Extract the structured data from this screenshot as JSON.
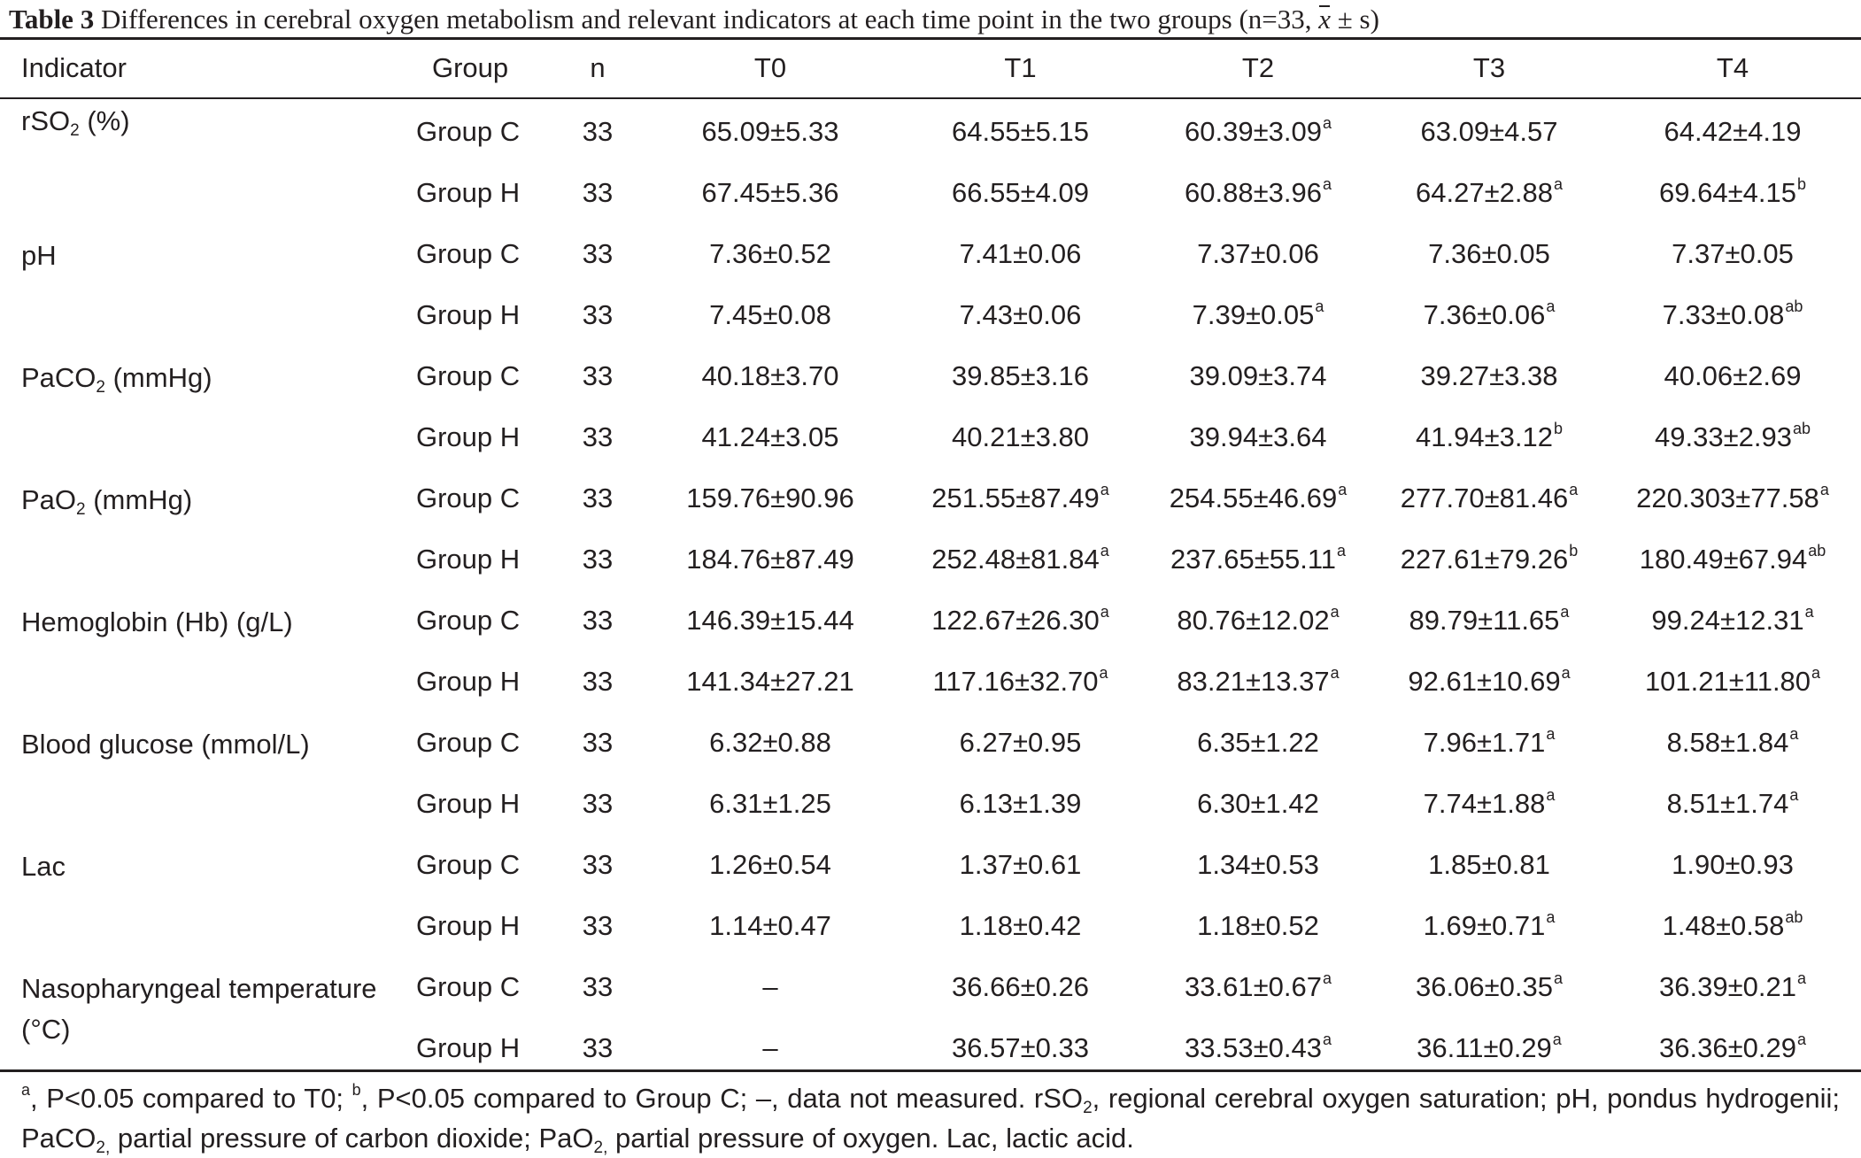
{
  "caption": {
    "label": "Table 3",
    "text_before": "Differences in cerebral oxygen metabolism and relevant indicators at each time point in the two groups (n=33, ",
    "mean_symbol": "x",
    "text_after": " ± s)"
  },
  "columns": [
    "Indicator",
    "Group",
    "n",
    "T0",
    "T1",
    "T2",
    "T3",
    "T4"
  ],
  "rows": [
    {
      "indicator_main": "rSO",
      "indicator_sub": "2",
      "indicator_rest": " (%)",
      "group": "Group C",
      "n": "33",
      "cells": [
        {
          "v": "65.09±5.33",
          "s": ""
        },
        {
          "v": "64.55±5.15",
          "s": ""
        },
        {
          "v": "60.39±3.09",
          "s": "a"
        },
        {
          "v": "63.09±4.57",
          "s": ""
        },
        {
          "v": "64.42±4.19",
          "s": ""
        }
      ]
    },
    {
      "indicator_main": "",
      "indicator_sub": "",
      "indicator_rest": "",
      "group": "Group H",
      "n": "33",
      "cells": [
        {
          "v": "67.45±5.36",
          "s": ""
        },
        {
          "v": "66.55±4.09",
          "s": ""
        },
        {
          "v": "60.88±3.96",
          "s": "a"
        },
        {
          "v": "64.27±2.88",
          "s": "a"
        },
        {
          "v": "69.64±4.15",
          "s": "b"
        }
      ]
    },
    {
      "indicator_main": "pH",
      "indicator_sub": "",
      "indicator_rest": "",
      "group": "Group C",
      "n": "33",
      "cells": [
        {
          "v": "7.36±0.52",
          "s": ""
        },
        {
          "v": "7.41±0.06",
          "s": ""
        },
        {
          "v": "7.37±0.06",
          "s": ""
        },
        {
          "v": "7.36±0.05",
          "s": ""
        },
        {
          "v": "7.37±0.05",
          "s": ""
        }
      ]
    },
    {
      "indicator_main": "",
      "indicator_sub": "",
      "indicator_rest": "",
      "group": "Group H",
      "n": "33",
      "cells": [
        {
          "v": "7.45±0.08",
          "s": ""
        },
        {
          "v": "7.43±0.06",
          "s": ""
        },
        {
          "v": "7.39±0.05",
          "s": "a"
        },
        {
          "v": "7.36±0.06",
          "s": "a"
        },
        {
          "v": "7.33±0.08",
          "s": "ab"
        }
      ]
    },
    {
      "indicator_main": "PaCO",
      "indicator_sub": "2",
      "indicator_rest": " (mmHg)",
      "group": "Group C",
      "n": "33",
      "cells": [
        {
          "v": "40.18±3.70",
          "s": ""
        },
        {
          "v": "39.85±3.16",
          "s": ""
        },
        {
          "v": "39.09±3.74",
          "s": ""
        },
        {
          "v": "39.27±3.38",
          "s": ""
        },
        {
          "v": "40.06±2.69",
          "s": ""
        }
      ]
    },
    {
      "indicator_main": "",
      "indicator_sub": "",
      "indicator_rest": "",
      "group": "Group H",
      "n": "33",
      "cells": [
        {
          "v": "41.24±3.05",
          "s": ""
        },
        {
          "v": "40.21±3.80",
          "s": ""
        },
        {
          "v": "39.94±3.64",
          "s": ""
        },
        {
          "v": "41.94±3.12",
          "s": "b"
        },
        {
          "v": "49.33±2.93",
          "s": "ab"
        }
      ]
    },
    {
      "indicator_main": "PaO",
      "indicator_sub": "2",
      "indicator_rest": " (mmHg)",
      "group": "Group C",
      "n": "33",
      "cells": [
        {
          "v": "159.76±90.96",
          "s": ""
        },
        {
          "v": "251.55±87.49",
          "s": "a"
        },
        {
          "v": "254.55±46.69",
          "s": "a"
        },
        {
          "v": "277.70±81.46",
          "s": "a"
        },
        {
          "v": "220.303±77.58",
          "s": "a"
        }
      ]
    },
    {
      "indicator_main": "",
      "indicator_sub": "",
      "indicator_rest": "",
      "group": "Group H",
      "n": "33",
      "cells": [
        {
          "v": "184.76±87.49",
          "s": ""
        },
        {
          "v": "252.48±81.84",
          "s": "a"
        },
        {
          "v": "237.65±55.11",
          "s": "a"
        },
        {
          "v": "227.61±79.26",
          "s": "b"
        },
        {
          "v": "180.49±67.94",
          "s": "ab"
        }
      ]
    },
    {
      "indicator_main": "Hemoglobin (Hb) (g/L)",
      "indicator_sub": "",
      "indicator_rest": "",
      "group": "Group C",
      "n": "33",
      "cells": [
        {
          "v": "146.39±15.44",
          "s": ""
        },
        {
          "v": "122.67±26.30",
          "s": "a"
        },
        {
          "v": "80.76±12.02",
          "s": "a"
        },
        {
          "v": "89.79±11.65",
          "s": "a"
        },
        {
          "v": "99.24±12.31",
          "s": "a"
        }
      ]
    },
    {
      "indicator_main": "",
      "indicator_sub": "",
      "indicator_rest": "",
      "group": "Group H",
      "n": "33",
      "cells": [
        {
          "v": "141.34±27.21",
          "s": ""
        },
        {
          "v": "117.16±32.70",
          "s": "a"
        },
        {
          "v": "83.21±13.37",
          "s": "a"
        },
        {
          "v": "92.61±10.69",
          "s": "a"
        },
        {
          "v": "101.21±11.80",
          "s": "a"
        }
      ]
    },
    {
      "indicator_main": "Blood glucose (mmol/L)",
      "indicator_sub": "",
      "indicator_rest": "",
      "group": "Group C",
      "n": "33",
      "cells": [
        {
          "v": "6.32±0.88",
          "s": ""
        },
        {
          "v": "6.27±0.95",
          "s": ""
        },
        {
          "v": "6.35±1.22",
          "s": ""
        },
        {
          "v": "7.96±1.71",
          "s": "a"
        },
        {
          "v": "8.58±1.84",
          "s": "a"
        }
      ]
    },
    {
      "indicator_main": "",
      "indicator_sub": "",
      "indicator_rest": "",
      "group": "Group H",
      "n": "33",
      "cells": [
        {
          "v": "6.31±1.25",
          "s": ""
        },
        {
          "v": "6.13±1.39",
          "s": ""
        },
        {
          "v": "6.30±1.42",
          "s": ""
        },
        {
          "v": "7.74±1.88",
          "s": "a"
        },
        {
          "v": "8.51±1.74",
          "s": "a"
        }
      ]
    },
    {
      "indicator_main": "Lac",
      "indicator_sub": "",
      "indicator_rest": "",
      "group": "Group C",
      "n": "33",
      "cells": [
        {
          "v": "1.26±0.54",
          "s": ""
        },
        {
          "v": "1.37±0.61",
          "s": ""
        },
        {
          "v": "1.34±0.53",
          "s": ""
        },
        {
          "v": "1.85±0.81",
          "s": ""
        },
        {
          "v": "1.90±0.93",
          "s": ""
        }
      ]
    },
    {
      "indicator_main": "",
      "indicator_sub": "",
      "indicator_rest": "",
      "group": "Group H",
      "n": "33",
      "cells": [
        {
          "v": "1.14±0.47",
          "s": ""
        },
        {
          "v": "1.18±0.42",
          "s": ""
        },
        {
          "v": "1.18±0.52",
          "s": ""
        },
        {
          "v": "1.69±0.71",
          "s": "a"
        },
        {
          "v": "1.48±0.58",
          "s": "ab"
        }
      ]
    },
    {
      "indicator_main": "Nasopharyngeal temperature (°C)",
      "indicator_sub": "",
      "indicator_rest": "",
      "group": "Group C",
      "n": "33",
      "cells": [
        {
          "v": "–",
          "s": ""
        },
        {
          "v": "36.66±0.26",
          "s": ""
        },
        {
          "v": "33.61±0.67",
          "s": "a"
        },
        {
          "v": "36.06±0.35",
          "s": "a"
        },
        {
          "v": "36.39±0.21",
          "s": "a"
        }
      ]
    },
    {
      "indicator_main": "",
      "indicator_sub": "",
      "indicator_rest": "",
      "group": "Group H",
      "n": "33",
      "cells": [
        {
          "v": "–",
          "s": ""
        },
        {
          "v": "36.57±0.33",
          "s": ""
        },
        {
          "v": "33.53±0.43",
          "s": "a"
        },
        {
          "v": "36.11±0.29",
          "s": "a"
        },
        {
          "v": "36.36±0.29",
          "s": "a"
        }
      ]
    }
  ],
  "footnote": {
    "p1_sup": "a",
    "p1": ", P<0.05 compared to T0; ",
    "p2_sup": "b",
    "p2": ", P<0.05 compared to Group C; –, data not measured. rSO",
    "p2_sub": "2",
    "p3": ", regional cerebral oxygen saturation; pH, pondus hydrogenii; PaCO",
    "p3_sub": "2,",
    "p4": " partial pressure of carbon dioxide; PaO",
    "p4_sub": "2,",
    "p5": " partial pressure of oxygen. Lac, lactic acid."
  }
}
